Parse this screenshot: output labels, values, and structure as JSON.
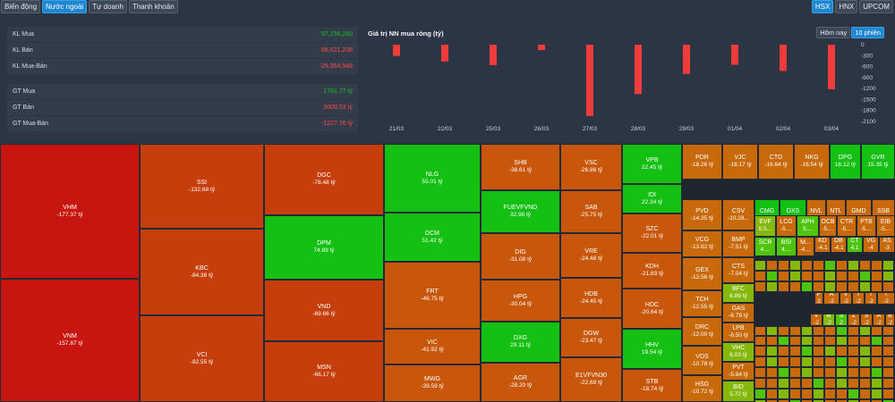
{
  "tabs": [
    "Biến động",
    "Nước ngoài",
    "Tự doanh",
    "Thanh khoản"
  ],
  "active_tab": 1,
  "exchange_tabs": [
    "HSX",
    "HNX",
    "UPCOM"
  ],
  "active_exchange": 0,
  "summary": {
    "kl_mua": {
      "label": "KL Mua",
      "value": "57,256,260"
    },
    "kl_ban": {
      "label": "KL Bán",
      "value": "86,621,208"
    },
    "kl_mua_ban": {
      "label": "KL Mua-Bán",
      "value": "-29,364,948"
    },
    "gt_mua": {
      "label": "GT Mua",
      "value": "1781.77 tỷ"
    },
    "gt_ban": {
      "label": "GT Bán",
      "value": "3009.53 tỷ"
    },
    "gt_mua_ban": {
      "label": "GT Mua-Bán",
      "value": "-1227.76 tỷ"
    }
  },
  "chart_toggle": [
    "Hôm nay",
    "10 phiên"
  ],
  "chart_toggle_active": 1,
  "chart_data": {
    "type": "bar",
    "title": "Giá trị NN mua ròng (tỷ)",
    "categories": [
      "21/03",
      "22/03",
      "25/03",
      "26/03",
      "27/03",
      "28/03",
      "29/03",
      "01/04",
      "02/04",
      "03/04"
    ],
    "values": [
      -310,
      -460,
      -560,
      -150,
      -1950,
      -1350,
      -800,
      -550,
      -720,
      -1220
    ],
    "ylim": [
      -2100,
      0
    ],
    "yticks": [
      0,
      -300,
      -600,
      -900,
      -1200,
      -1500,
      -1800,
      -2100
    ],
    "bar_color": "#ef3b3b"
  },
  "colors": {
    "deep_red": "#c8150f",
    "red_orange": "#c53e0b",
    "orange": "#c8570b",
    "orange2": "#c8690b",
    "bright_green": "#14c012",
    "light_green": "#4fc40d",
    "yellow_green": "#86b80c"
  },
  "treemap": [
    {
      "ticker": "VHM",
      "value": "-177.37 tỷ"
    },
    {
      "ticker": "VNM",
      "value": "-157.87 tỷ"
    },
    {
      "ticker": "SSI",
      "value": "-132.68 tỷ"
    },
    {
      "ticker": "KBC",
      "value": "-84.38 tỷ"
    },
    {
      "ticker": "VCI",
      "value": "-82.55 tỷ"
    },
    {
      "ticker": "DGC",
      "value": "-78.48 tỷ"
    },
    {
      "ticker": "DPM",
      "value": "74.89 tỷ"
    },
    {
      "ticker": "VND",
      "value": "-69.66 tỷ"
    },
    {
      "ticker": "MSN",
      "value": "-66.17 tỷ"
    },
    {
      "ticker": "NLG",
      "value": "55.01 tỷ"
    },
    {
      "ticker": "DCM",
      "value": "51.42 tỷ"
    },
    {
      "ticker": "FRT",
      "value": "-46.75 tỷ"
    },
    {
      "ticker": "VIC",
      "value": "-41.92 tỷ"
    },
    {
      "ticker": "MWG",
      "value": "-39.59 tỷ"
    },
    {
      "ticker": "SHB",
      "value": "-38.61 tỷ"
    },
    {
      "ticker": "FUEVFVND",
      "value": "32.96 tỷ"
    },
    {
      "ticker": "DIG",
      "value": "-31.08 tỷ"
    },
    {
      "ticker": "HPG",
      "value": "-30.04 tỷ"
    },
    {
      "ticker": "DXG",
      "value": "29.11 tỷ"
    },
    {
      "ticker": "AGR",
      "value": "-28.20 tỷ"
    },
    {
      "ticker": "VSC",
      "value": "-26.86 tỷ"
    },
    {
      "ticker": "SAB",
      "value": "-25.75 tỷ"
    },
    {
      "ticker": "VRE",
      "value": "-24.48 tỷ"
    },
    {
      "ticker": "HDB",
      "value": "-24.45 tỷ"
    },
    {
      "ticker": "DGW",
      "value": "-23.47 tỷ"
    },
    {
      "ticker": "E1VFVN30",
      "value": "-22.69 tỷ"
    },
    {
      "ticker": "VPB",
      "value": "22.45 tỷ"
    },
    {
      "ticker": "IDI",
      "value": "22.34 tỷ"
    },
    {
      "ticker": "SZC",
      "value": "-22.01 tỷ"
    },
    {
      "ticker": "KDH",
      "value": "-21.83 tỷ"
    },
    {
      "ticker": "HDC",
      "value": "-20.64 tỷ"
    },
    {
      "ticker": "HHV",
      "value": "19.54 tỷ"
    },
    {
      "ticker": "STB",
      "value": "-18.74 tỷ"
    },
    {
      "ticker": "PDR",
      "value": "-18.26 tỷ"
    },
    {
      "ticker": "VJC",
      "value": "-18.17 tỷ"
    },
    {
      "ticker": "CTD",
      "value": "-16.64 tỷ"
    },
    {
      "ticker": "NKG",
      "value": "-16.54 tỷ"
    },
    {
      "ticker": "DPG",
      "value": "16.12 tỷ"
    },
    {
      "ticker": "GVR",
      "value": "15.35 tỷ"
    },
    {
      "ticker": "PVD",
      "value": "-14.35 tỷ"
    },
    {
      "ticker": "VCG",
      "value": "-13.82 tỷ"
    },
    {
      "ticker": "GEX",
      "value": "-12.56 tỷ"
    },
    {
      "ticker": "TCH",
      "value": "-12.55 tỷ"
    },
    {
      "ticker": "DRC",
      "value": "-12.00 tỷ"
    },
    {
      "ticker": "VDS",
      "value": "-10.78 tỷ"
    },
    {
      "ticker": "HSG",
      "value": "-10.72 tỷ"
    },
    {
      "ticker": "CSV",
      "value": "-10.28..."
    },
    {
      "ticker": "CMG",
      "value": "9.93 tỷ"
    },
    {
      "ticker": "DXS",
      "value": "9.66 tỷ"
    },
    {
      "ticker": "NVL",
      "value": "-8.6..."
    },
    {
      "ticker": "NTL",
      "value": "-8.4..."
    },
    {
      "ticker": "GMD",
      "value": "-8.3..."
    },
    {
      "ticker": "SSB",
      "value": "-7.9..."
    },
    {
      "ticker": "BMP",
      "value": "-7.51 tỷ"
    },
    {
      "ticker": "CTS",
      "value": "-7.04 tỷ"
    },
    {
      "ticker": "BFC",
      "value": "6.89 tỷ"
    },
    {
      "ticker": "GAS",
      "value": "-6.79 tỷ"
    },
    {
      "ticker": "LPB",
      "value": "-6.50 tỷ"
    },
    {
      "ticker": "VHC",
      "value": "6.03 tỷ"
    },
    {
      "ticker": "PVT",
      "value": "-5.84 tỷ"
    },
    {
      "ticker": "BID",
      "value": "5.72 tỷ"
    },
    {
      "ticker": "EVF",
      "value": "5.5..."
    },
    {
      "ticker": "LCG",
      "value": "-5...."
    },
    {
      "ticker": "APH",
      "value": "5...."
    },
    {
      "ticker": "OCB",
      "value": "-5...."
    },
    {
      "ticker": "CTR",
      "value": "-5...."
    },
    {
      "ticker": "PTB",
      "value": "-5...."
    },
    {
      "ticker": "EIB",
      "value": "-5...."
    },
    {
      "ticker": "SCR",
      "value": "4...."
    },
    {
      "ticker": "BSI",
      "value": "4...."
    },
    {
      "ticker": "M...",
      "value": "-4...."
    },
    {
      "ticker": "KD",
      "value": "-4.1"
    },
    {
      "ticker": "DB",
      "value": "-4.1"
    },
    {
      "ticker": "CT",
      "value": "4.1"
    },
    {
      "ticker": "VG",
      "value": "-4"
    },
    {
      "ticker": "AS",
      "value": "-3"
    },
    {
      "ticker": "P",
      "value": "2"
    },
    {
      "ticker": "A",
      "value": "-2"
    },
    {
      "ticker": "V",
      "value": "-2"
    },
    {
      "ticker": "I",
      "value": "-2"
    },
    {
      "ticker": "T",
      "value": "-2"
    },
    {
      "ticker": "T",
      "value": "-2"
    },
    {
      "ticker": "V",
      "value": "-2"
    },
    {
      "ticker": "B",
      "value": "-2"
    },
    {
      "ticker": "S",
      "value": "2"
    },
    {
      "ticker": "Z",
      "value": "-2"
    },
    {
      "ticker": "S",
      "value": "-2"
    },
    {
      "ticker": "A",
      "value": "-2"
    },
    {
      "ticker": "B",
      "value": "-2"
    },
    {
      "ticker": "N",
      "value": "-2"
    },
    {
      "ticker": "V",
      "value": "-2"
    }
  ]
}
